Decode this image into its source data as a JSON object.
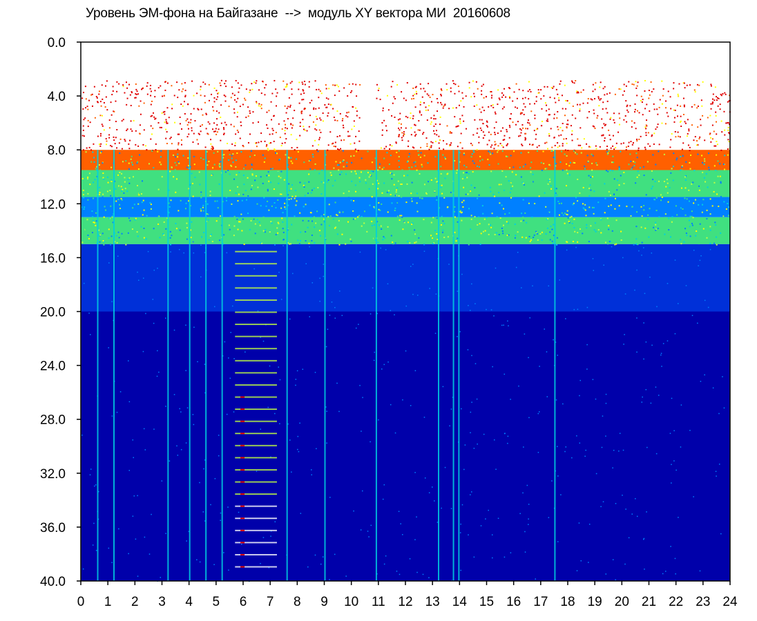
{
  "chart_data": {
    "type": "heatmap",
    "title": "Уровень ЭМ-фона на Байгазане  -->  модуль XY вектора МИ  20160608",
    "xlabel": "",
    "ylabel": "",
    "x_ticks": [
      "0",
      "1",
      "2",
      "3",
      "4",
      "5",
      "6",
      "7",
      "8",
      "9",
      "10",
      "11",
      "12",
      "13",
      "14",
      "15",
      "16",
      "17",
      "18",
      "19",
      "20",
      "21",
      "22",
      "23",
      "24"
    ],
    "y_ticks": [
      "0.0",
      "4.0",
      "8.0",
      "12.0",
      "16.0",
      "20.0",
      "24.0",
      "28.0",
      "32.0",
      "36.0",
      "40.0"
    ],
    "xlim": [
      0,
      24
    ],
    "ylim": [
      0,
      40
    ],
    "y_inverted": true,
    "colormap": [
      "#0000aa",
      "#0030d8",
      "#0080ff",
      "#00d0e0",
      "#40e080",
      "#c0ff40",
      "#ffff00",
      "#ff6000",
      "#e00000"
    ],
    "bands": [
      {
        "y_from": 2.0,
        "y_to": 8.0,
        "level": "scattered high (red)"
      },
      {
        "y_from": 8.0,
        "y_to": 9.5,
        "level": "high (red/yellow)"
      },
      {
        "y_from": 9.5,
        "y_to": 11.5,
        "level": "medium (green/cyan)"
      },
      {
        "y_from": 11.5,
        "y_to": 13.0,
        "level": "low-medium (blue/cyan)"
      },
      {
        "y_from": 13.0,
        "y_to": 15.0,
        "level": "medium (green/cyan)"
      },
      {
        "y_from": 15.0,
        "y_to": 40.0,
        "level": "low (blue)"
      }
    ],
    "vertical_streaks_hours": [
      0.6,
      1.2,
      3.2,
      4.0,
      4.6,
      5.2,
      7.6,
      9.0,
      10.9,
      13.2,
      13.75,
      13.95,
      17.5
    ]
  }
}
